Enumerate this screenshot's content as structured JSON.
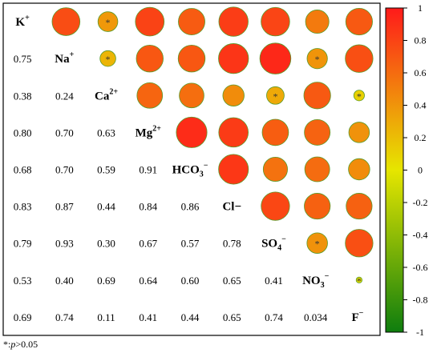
{
  "chart_data": {
    "type": "heatmap",
    "variables": [
      "K+",
      "Na+",
      "Ca2+",
      "Mg2+",
      "HCO3−",
      "Cl−",
      "SO4−",
      "NO3−",
      "F−"
    ],
    "variable_labels": [
      {
        "base": "K",
        "sup": "+"
      },
      {
        "base": "Na",
        "sup": "+"
      },
      {
        "base": "Ca",
        "sup": "2+"
      },
      {
        "base": "Mg",
        "sup": "2+"
      },
      {
        "base": "HCO",
        "sub": "3",
        "sup": "−"
      },
      {
        "base": "Cl−"
      },
      {
        "base": "SO",
        "sub": "4",
        "sup": "−"
      },
      {
        "base": "NO",
        "sub": "3",
        "sup": "−"
      },
      {
        "base": "F",
        "sup": "−"
      }
    ],
    "lower_labels": [
      [],
      [
        "0.75"
      ],
      [
        "0.38",
        "0.24"
      ],
      [
        "0.80",
        "0.70",
        "0.63"
      ],
      [
        "0.68",
        "0.70",
        "0.59",
        "0.91"
      ],
      [
        "0.83",
        "0.87",
        "0.44",
        "0.84",
        "0.86"
      ],
      [
        "0.79",
        "0.93",
        "0.30",
        "0.67",
        "0.57",
        "0.78"
      ],
      [
        "0.53",
        "0.40",
        "0.69",
        "0.64",
        "0.60",
        "0.65",
        "0.41"
      ],
      [
        "0.69",
        "0.74",
        "0.11",
        "0.41",
        "0.44",
        "0.65",
        "0.74",
        "0.034"
      ]
    ],
    "matrix": [
      [
        1,
        0.75,
        0.38,
        0.8,
        0.68,
        0.83,
        0.79,
        0.53,
        0.69
      ],
      [
        0.75,
        1,
        0.24,
        0.7,
        0.7,
        0.87,
        0.93,
        0.4,
        0.74
      ],
      [
        0.38,
        0.24,
        1,
        0.63,
        0.59,
        0.44,
        0.3,
        0.69,
        0.11
      ],
      [
        0.8,
        0.7,
        0.63,
        1,
        0.91,
        0.84,
        0.67,
        0.64,
        0.41
      ],
      [
        0.68,
        0.7,
        0.59,
        0.91,
        1,
        0.86,
        0.57,
        0.6,
        0.44
      ],
      [
        0.83,
        0.87,
        0.44,
        0.84,
        0.86,
        1,
        0.78,
        0.65,
        0.65
      ],
      [
        0.79,
        0.93,
        0.3,
        0.67,
        0.57,
        0.78,
        1,
        0.41,
        0.74
      ],
      [
        0.53,
        0.4,
        0.69,
        0.64,
        0.6,
        0.65,
        0.41,
        1,
        0.034
      ],
      [
        0.69,
        0.74,
        0.11,
        0.41,
        0.44,
        0.65,
        0.74,
        0.034,
        1
      ]
    ],
    "significance_marker": "*",
    "not_significant_pairs": [
      [
        "K+",
        "Ca2+"
      ],
      [
        "Na+",
        "Ca2+"
      ],
      [
        "Ca2+",
        "SO4−"
      ],
      [
        "Ca2+",
        "F−"
      ],
      [
        "Na+",
        "NO3−"
      ],
      [
        "SO4−",
        "NO3−"
      ],
      [
        "NO3−",
        "F−"
      ]
    ],
    "colorbar": {
      "range": [
        -1,
        1
      ],
      "ticks": [
        "1",
        "0.8",
        "0.6",
        "0.4",
        "0.2",
        "0",
        "-0.2",
        "-0.4",
        "-0.6",
        "-0.8",
        "-1"
      ],
      "colors": [
        "#0e7d0e",
        "#e6e600",
        "#ff1a1a"
      ]
    },
    "footnote": {
      "star": "*",
      "p": "p",
      "rest": ">0.05"
    }
  }
}
